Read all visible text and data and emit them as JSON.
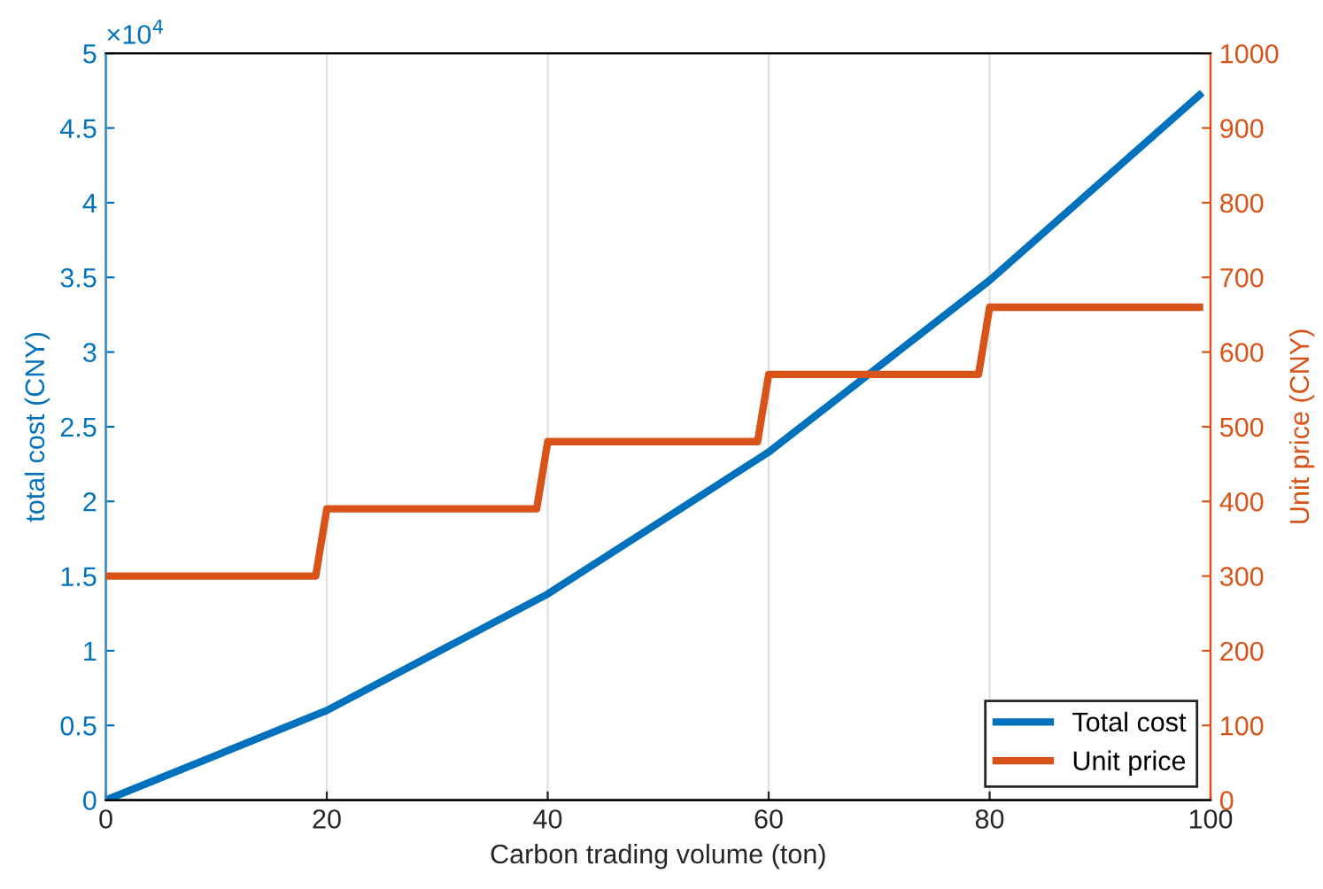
{
  "chart_data": {
    "type": "line",
    "xlabel": "Carbon trading volume (ton)",
    "ylabel": "total cost (CNY)",
    "y2label": "Unit price (CNY)",
    "annotations": [
      "×10$^{4}$"
    ],
    "xlim": [
      0,
      100
    ],
    "xticks": [
      0,
      20,
      40,
      60,
      80,
      100
    ],
    "ylim": [
      0,
      5
    ],
    "yticks": [
      0,
      0.5,
      1,
      1.5,
      2,
      2.5,
      3,
      3.5,
      4,
      4.5,
      5
    ],
    "y2lim": [
      0,
      1000
    ],
    "y2ticks": [
      0,
      100,
      200,
      300,
      400,
      500,
      600,
      700,
      800,
      900,
      1000
    ],
    "grid": "x",
    "legend": "bottom right",
    "series": [
      {
        "name": "Total cost",
        "color": "#0072bd",
        "x": [
          0,
          20,
          40,
          60,
          80,
          99
        ],
        "values": [
          0,
          0.6,
          1.38,
          2.33,
          3.48,
          4.72
        ]
      },
      {
        "name": "Unit price",
        "color": "#d95319",
        "axis": "y2",
        "x": [
          0,
          19,
          20,
          39,
          40,
          59,
          60,
          79,
          80,
          99
        ],
        "values": [
          300,
          300,
          390,
          390,
          480,
          480,
          570,
          570,
          660,
          660
        ]
      }
    ]
  }
}
